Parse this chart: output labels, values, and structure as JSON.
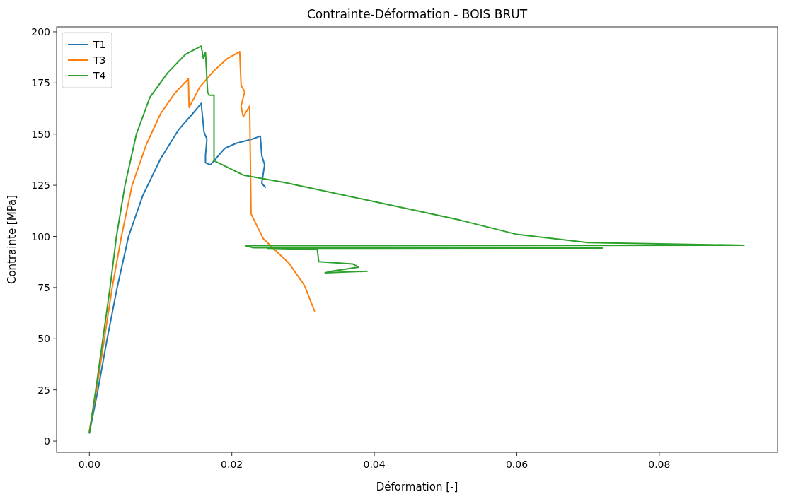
{
  "chart_data": {
    "type": "line",
    "title": "Contrainte-Déformation - BOIS BRUT",
    "xlabel": "Déformation [-]",
    "ylabel": "Contrainte [MPa]",
    "xlim": [
      -0.0046,
      0.0966
    ],
    "ylim": [
      -5.5,
      202.4
    ],
    "xticks": [
      {
        "value": 0,
        "label": "0.00"
      },
      {
        "value": 0.02,
        "label": "0.02"
      },
      {
        "value": 0.04,
        "label": "0.04"
      },
      {
        "value": 0.06,
        "label": "0.06"
      },
      {
        "value": 0.08,
        "label": "0.08"
      }
    ],
    "yticks": [
      0,
      25,
      50,
      75,
      100,
      125,
      150,
      175,
      200
    ],
    "grid": false,
    "legend": "top left",
    "marker": "none",
    "line_style": "solid",
    "series": [
      {
        "name": "T1",
        "color": "#1f77b4",
        "x": [
          0,
          0.0012,
          0.0025,
          0.0039,
          0.0055,
          0.0075,
          0.01,
          0.0125,
          0.0145,
          0.0157,
          0.0161,
          0.0165,
          0.0163,
          0.0163,
          0.017,
          0.0175,
          0.019,
          0.0206,
          0.0228,
          0.024,
          0.0242,
          0.0246,
          0.0242,
          0.0247
        ],
        "values": [
          4,
          25,
          50,
          75,
          100,
          120,
          138,
          152,
          160,
          165,
          151,
          147.5,
          139.5,
          136,
          135,
          137,
          143,
          145.5,
          147.5,
          149,
          139.5,
          135,
          126,
          124
        ]
      },
      {
        "name": "T3",
        "color": "#ff7f0e",
        "x": [
          0,
          0.001,
          0.0021,
          0.0032,
          0.0045,
          0.006,
          0.008,
          0.01,
          0.012,
          0.0139,
          0.014,
          0.0155,
          0.0175,
          0.0194,
          0.0211,
          0.0213,
          0.0218,
          0.0213,
          0.0216,
          0.0225,
          0.0227,
          0.0244,
          0.028,
          0.0302,
          0.0316
        ],
        "values": [
          5,
          25,
          50,
          75,
          100,
          125,
          145,
          160,
          170,
          177,
          163,
          173,
          181,
          187,
          190.3,
          174,
          170.6,
          163.7,
          158.5,
          163.7,
          111,
          99,
          87,
          76,
          63.6
        ]
      },
      {
        "name": "T4",
        "color": "#2ca02c",
        "x": [
          0,
          0.0009,
          0.0019,
          0.0029,
          0.0038,
          0.005,
          0.0066,
          0.0085,
          0.011,
          0.0135,
          0.0157,
          0.016,
          0.0163,
          0.0166,
          0.0168,
          0.0175,
          0.0175,
          0.0216,
          0.0273,
          0.04,
          0.052,
          0.06,
          0.07,
          0.0919,
          0.0219,
          0.023,
          0.072,
          0.025,
          0.032,
          0.0322,
          0.037,
          0.0378,
          0.034,
          0.0331,
          0.039
        ],
        "values": [
          4,
          25,
          50,
          75,
          100,
          125,
          150,
          168,
          180,
          189,
          193,
          187,
          190,
          170.6,
          169,
          169,
          137,
          130,
          126.4,
          117,
          108,
          101,
          97,
          95.7,
          95.5,
          94.5,
          94.3,
          94.2,
          93.6,
          87.7,
          86.5,
          85,
          83,
          82.2,
          83
        ]
      }
    ]
  }
}
